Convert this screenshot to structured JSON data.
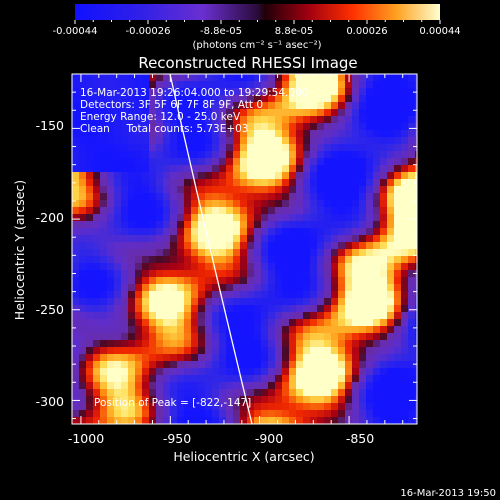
{
  "colorbar": {
    "tick_labels": [
      "-0.00044",
      "-0.00026",
      "-8.8e-05",
      "8.8e-05",
      "0.00026",
      "0.00044"
    ],
    "unit_label": "(photons cm⁻² s⁻¹ asec⁻²)"
  },
  "title": "Reconstructed RHESSI Image",
  "info": {
    "line1": "16-Mar-2013 19:26:04.000 to 19:29:54.000",
    "line2": "Detectors: 3F 5F 6F 7F 8F 9F, Att 0",
    "line3": "Energy Range: 12.0 - 25.0 keV",
    "line4": "Clean     Total counts: 5.73E+03"
  },
  "peak_text": "Position of Peak = [-822,-147]",
  "xaxis": {
    "label": "Heliocentric X (arcsec)",
    "ticks": [
      "-1000",
      "-950",
      "-900",
      "-850"
    ],
    "range": [
      -1005,
      -812
    ]
  },
  "yaxis": {
    "label": "Heliocentric Y (arcsec)",
    "ticks": [
      "-150",
      "-200",
      "-250",
      "-300"
    ],
    "range": [
      -313,
      -120
    ]
  },
  "footer_timestamp": "16-Mar-2013 19:50",
  "colors": {
    "background": "#000000",
    "text": "#ffffff",
    "limb": "#ffffff"
  }
}
